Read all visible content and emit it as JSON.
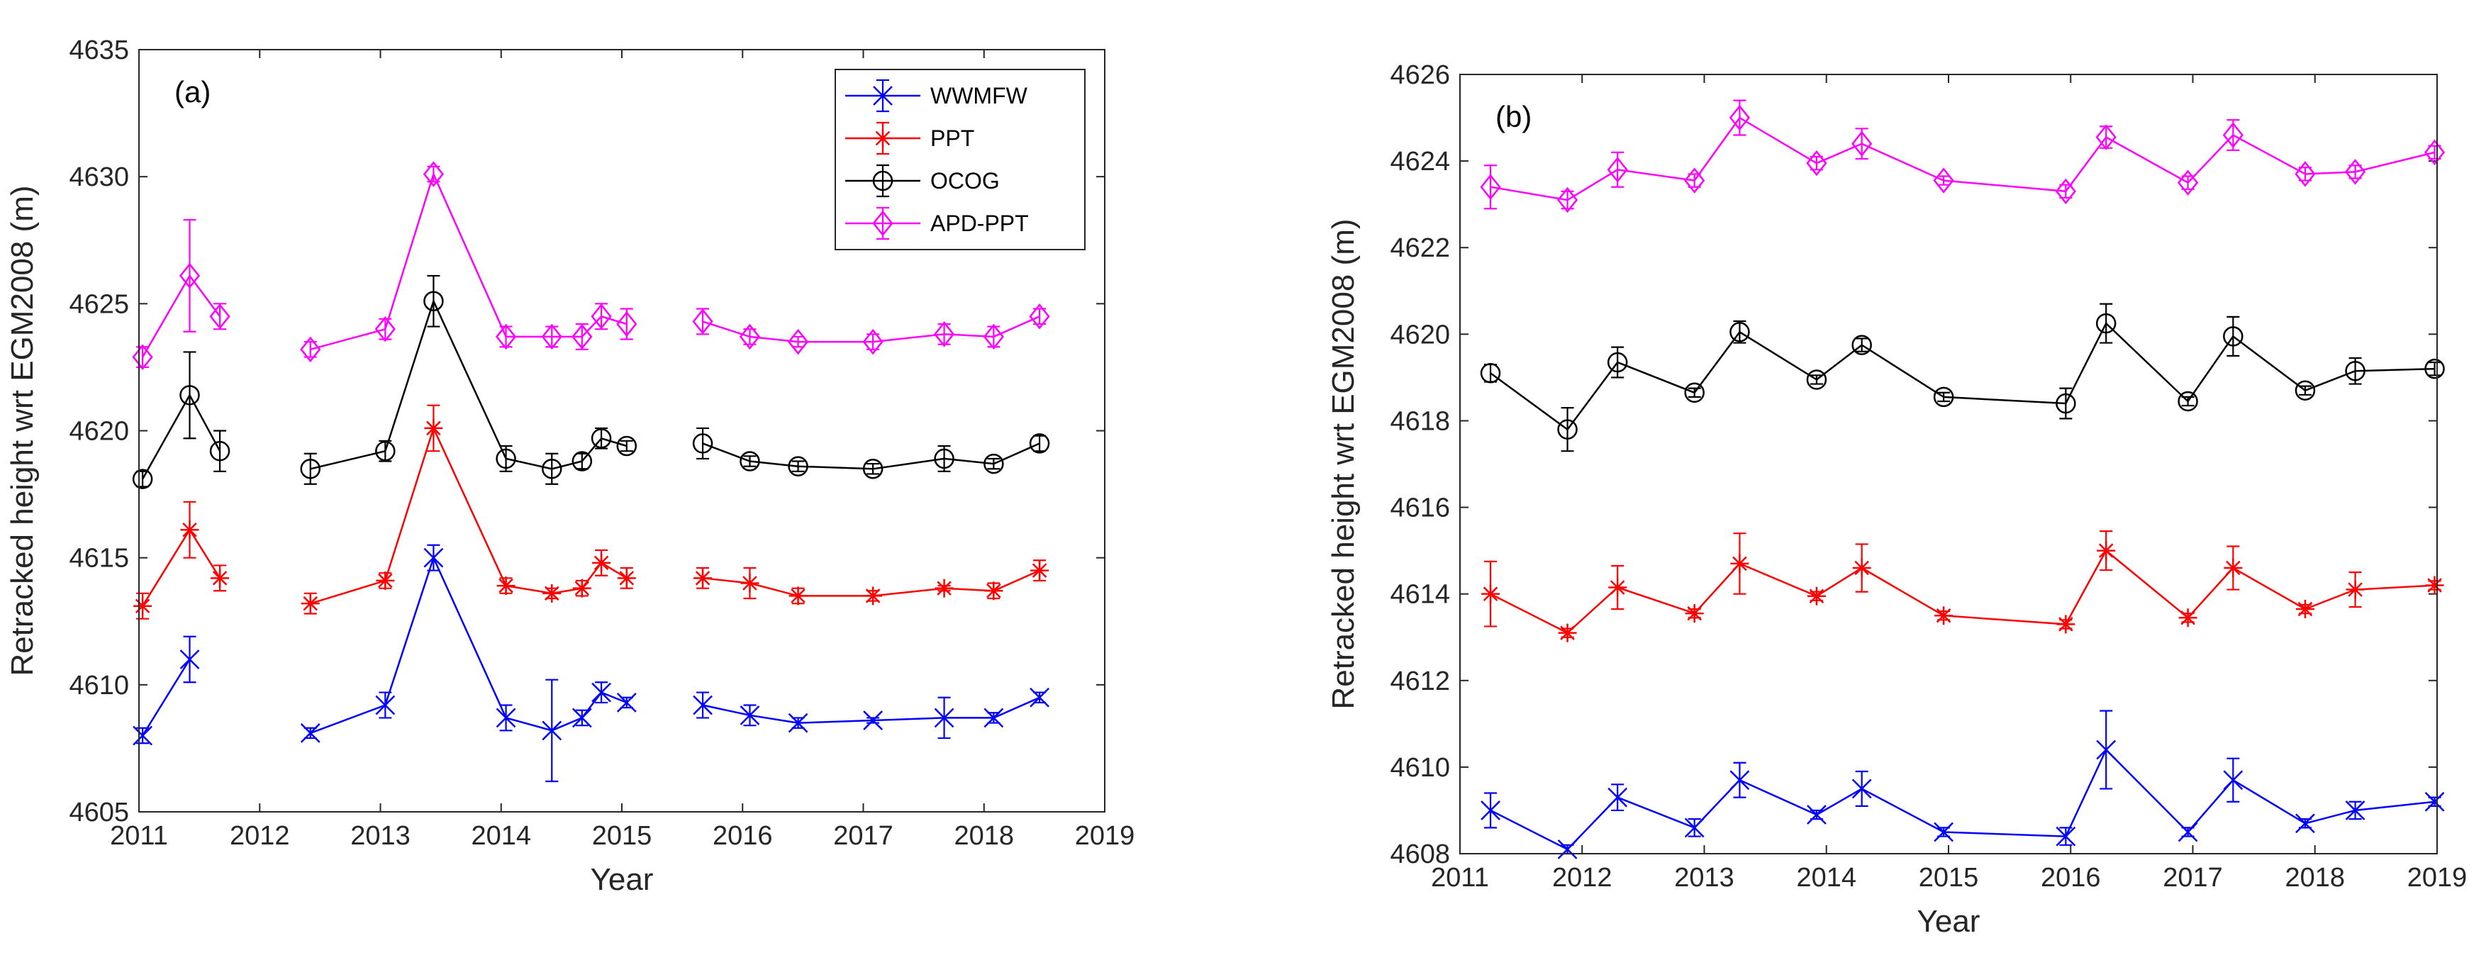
{
  "chart_data": [
    {
      "type": "line",
      "panel_label": "(a)",
      "xlabel": "Year",
      "ylabel": "Retracked height wrt EGM2008 (m)",
      "xlim": [
        2011,
        2019
      ],
      "ylim": [
        4605,
        4635
      ],
      "xticks": [
        2011,
        2012,
        2013,
        2014,
        2015,
        2016,
        2017,
        2018,
        2019
      ],
      "yticks": [
        4605,
        4610,
        4615,
        4620,
        4625,
        4630,
        4635
      ],
      "legend": "top-right",
      "series": [
        {
          "name": "WWMFW",
          "color": "#0000ff",
          "marker": "x",
          "segments": [
            [
              [
                2011.03,
                4608.0,
                0.3
              ],
              [
                2011.42,
                4611.0,
                0.9
              ]
            ],
            [
              [
                2012.42,
                4608.1,
                0.2
              ],
              [
                2013.04,
                4609.2,
                0.5
              ],
              [
                2013.44,
                4615.0,
                0.5
              ],
              [
                2014.04,
                4608.7,
                0.5
              ],
              [
                2014.42,
                4608.2,
                2.0
              ],
              [
                2014.67,
                4608.7,
                0.3
              ],
              [
                2014.83,
                4609.7,
                0.4
              ],
              [
                2015.04,
                4609.3,
                0.2
              ]
            ],
            [
              [
                2015.67,
                4609.2,
                0.5
              ],
              [
                2016.06,
                4608.8,
                0.4
              ],
              [
                2016.46,
                4608.5,
                0.2
              ],
              [
                2017.08,
                4608.6,
                0.1
              ],
              [
                2017.67,
                4608.7,
                0.8
              ],
              [
                2018.08,
                4608.7,
                0.2
              ],
              [
                2018.46,
                4609.5,
                0.2
              ]
            ]
          ]
        },
        {
          "name": "PPT",
          "color": "#ff0000",
          "marker": "*",
          "segments": [
            [
              [
                2011.03,
                4613.1,
                0.5
              ],
              [
                2011.42,
                4616.1,
                1.1
              ],
              [
                2011.67,
                4614.2,
                0.5
              ]
            ],
            [
              [
                2012.42,
                4613.2,
                0.4
              ],
              [
                2013.04,
                4614.1,
                0.3
              ],
              [
                2013.44,
                4620.1,
                0.9
              ],
              [
                2014.04,
                4613.9,
                0.3
              ],
              [
                2014.42,
                4613.6,
                0.2
              ],
              [
                2014.67,
                4613.8,
                0.3
              ],
              [
                2014.83,
                4614.8,
                0.5
              ],
              [
                2015.04,
                4614.2,
                0.4
              ]
            ],
            [
              [
                2015.67,
                4614.2,
                0.4
              ],
              [
                2016.06,
                4614.0,
                0.6
              ],
              [
                2016.46,
                4613.5,
                0.3
              ],
              [
                2017.08,
                4613.5,
                0.2
              ],
              [
                2017.67,
                4613.8,
                0.1
              ],
              [
                2018.08,
                4613.7,
                0.3
              ],
              [
                2018.46,
                4614.5,
                0.4
              ]
            ]
          ]
        },
        {
          "name": "OCOG",
          "color": "#000000",
          "marker": "o",
          "segments": [
            [
              [
                2011.03,
                4618.1,
                0.3
              ],
              [
                2011.42,
                4621.4,
                1.7
              ],
              [
                2011.67,
                4619.2,
                0.8
              ]
            ],
            [
              [
                2012.42,
                4618.5,
                0.6
              ],
              [
                2013.04,
                4619.2,
                0.4
              ],
              [
                2013.44,
                4625.1,
                1.0
              ],
              [
                2014.04,
                4618.9,
                0.5
              ],
              [
                2014.42,
                4618.5,
                0.6
              ],
              [
                2014.67,
                4618.8,
                0.3
              ],
              [
                2014.83,
                4619.7,
                0.4
              ],
              [
                2015.04,
                4619.4,
                0.2
              ]
            ],
            [
              [
                2015.67,
                4619.5,
                0.6
              ],
              [
                2016.06,
                4618.8,
                0.2
              ],
              [
                2016.46,
                4618.6,
                0.2
              ],
              [
                2017.08,
                4618.5,
                0.2
              ],
              [
                2017.67,
                4618.9,
                0.5
              ],
              [
                2018.08,
                4618.7,
                0.2
              ],
              [
                2018.46,
                4619.5,
                0.3
              ]
            ]
          ]
        },
        {
          "name": "APD-PPT",
          "color": "#ff00ff",
          "marker": "d",
          "segments": [
            [
              [
                2011.03,
                4622.9,
                0.4
              ],
              [
                2011.42,
                4626.1,
                2.2
              ],
              [
                2011.67,
                4624.5,
                0.5
              ]
            ],
            [
              [
                2012.42,
                4623.2,
                0.3
              ],
              [
                2013.04,
                4624.0,
                0.4
              ],
              [
                2013.44,
                4630.1,
                0.3
              ],
              [
                2014.04,
                4623.7,
                0.4
              ],
              [
                2014.42,
                4623.7,
                0.4
              ],
              [
                2014.67,
                4623.7,
                0.5
              ],
              [
                2014.83,
                4624.5,
                0.5
              ],
              [
                2015.04,
                4624.2,
                0.6
              ]
            ],
            [
              [
                2015.67,
                4624.3,
                0.5
              ],
              [
                2016.06,
                4623.7,
                0.3
              ],
              [
                2016.46,
                4623.5,
                0.2
              ],
              [
                2017.08,
                4623.5,
                0.3
              ],
              [
                2017.67,
                4623.8,
                0.4
              ],
              [
                2018.08,
                4623.7,
                0.4
              ],
              [
                2018.46,
                4624.5,
                0.3
              ]
            ]
          ]
        }
      ]
    },
    {
      "type": "line",
      "panel_label": "(b)",
      "xlabel": "Year",
      "ylabel": "Retracked height wrt EGM2008 (m)",
      "xlim": [
        2011,
        2019
      ],
      "ylim": [
        4608,
        4626
      ],
      "xticks": [
        2011,
        2012,
        2013,
        2014,
        2015,
        2016,
        2017,
        2018,
        2019
      ],
      "yticks": [
        4608,
        4610,
        4612,
        4614,
        4616,
        4618,
        4620,
        4622,
        4624,
        4626
      ],
      "series": [
        {
          "name": "WWMFW",
          "color": "#0000ff",
          "marker": "x",
          "segments": [
            [
              [
                2011.25,
                4609.0,
                0.4
              ],
              [
                2011.88,
                4608.1,
                0.1
              ],
              [
                2012.29,
                4609.3,
                0.3
              ],
              [
                2012.92,
                4608.6,
                0.2
              ],
              [
                2013.29,
                4609.7,
                0.4
              ],
              [
                2013.92,
                4608.9,
                0.1
              ],
              [
                2014.29,
                4609.5,
                0.4
              ],
              [
                2014.96,
                4608.5,
                0.1
              ],
              [
                2015.96,
                4608.4,
                0.2
              ],
              [
                2016.29,
                4610.4,
                0.9
              ],
              [
                2016.96,
                4608.5,
                0.1
              ],
              [
                2017.33,
                4609.7,
                0.5
              ],
              [
                2017.92,
                4608.7,
                0.1
              ],
              [
                2018.33,
                4609.0,
                0.2
              ],
              [
                2018.98,
                4609.2,
                0.1
              ]
            ]
          ]
        },
        {
          "name": "PPT",
          "color": "#ff0000",
          "marker": "*",
          "segments": [
            [
              [
                2011.25,
                4614.0,
                0.75
              ],
              [
                2011.88,
                4613.1,
                0.1
              ],
              [
                2012.29,
                4614.15,
                0.5
              ],
              [
                2012.92,
                4613.55,
                0.1
              ],
              [
                2013.29,
                4614.7,
                0.7
              ],
              [
                2013.92,
                4613.95,
                0.1
              ],
              [
                2014.29,
                4614.6,
                0.55
              ],
              [
                2014.96,
                4613.5,
                0.1
              ],
              [
                2015.96,
                4613.3,
                0.1
              ],
              [
                2016.29,
                4615.0,
                0.45
              ],
              [
                2016.96,
                4613.45,
                0.1
              ],
              [
                2017.33,
                4614.6,
                0.5
              ],
              [
                2017.92,
                4613.65,
                0.1
              ],
              [
                2018.33,
                4614.1,
                0.4
              ],
              [
                2018.98,
                4614.2,
                0.1
              ]
            ]
          ]
        },
        {
          "name": "OCOG",
          "color": "#000000",
          "marker": "o",
          "segments": [
            [
              [
                2011.25,
                4619.1,
                0.2
              ],
              [
                2011.88,
                4617.8,
                0.5
              ],
              [
                2012.29,
                4619.35,
                0.35
              ],
              [
                2012.92,
                4618.65,
                0.1
              ],
              [
                2013.29,
                4620.05,
                0.25
              ],
              [
                2013.92,
                4618.95,
                0.1
              ],
              [
                2014.29,
                4619.75,
                0.15
              ],
              [
                2014.96,
                4618.55,
                0.1
              ],
              [
                2015.96,
                4618.4,
                0.35
              ],
              [
                2016.29,
                4620.25,
                0.45
              ],
              [
                2016.96,
                4618.45,
                0.1
              ],
              [
                2017.33,
                4619.95,
                0.45
              ],
              [
                2017.92,
                4618.7,
                0.1
              ],
              [
                2018.33,
                4619.15,
                0.3
              ],
              [
                2018.98,
                4619.2,
                0.15
              ]
            ]
          ]
        },
        {
          "name": "APD-PPT",
          "color": "#ff00ff",
          "marker": "d",
          "segments": [
            [
              [
                2011.25,
                4623.4,
                0.5
              ],
              [
                2011.88,
                4623.1,
                0.2
              ],
              [
                2012.29,
                4623.8,
                0.4
              ],
              [
                2012.92,
                4623.55,
                0.15
              ],
              [
                2013.29,
                4625.0,
                0.4
              ],
              [
                2013.92,
                4623.95,
                0.15
              ],
              [
                2014.29,
                4624.4,
                0.35
              ],
              [
                2014.96,
                4623.55,
                0.1
              ],
              [
                2015.96,
                4623.3,
                0.15
              ],
              [
                2016.29,
                4624.55,
                0.25
              ],
              [
                2016.96,
                4623.5,
                0.15
              ],
              [
                2017.33,
                4624.6,
                0.35
              ],
              [
                2017.92,
                4623.7,
                0.15
              ],
              [
                2018.33,
                4623.75,
                0.15
              ],
              [
                2018.98,
                4624.2,
                0.15
              ]
            ]
          ]
        }
      ]
    }
  ]
}
